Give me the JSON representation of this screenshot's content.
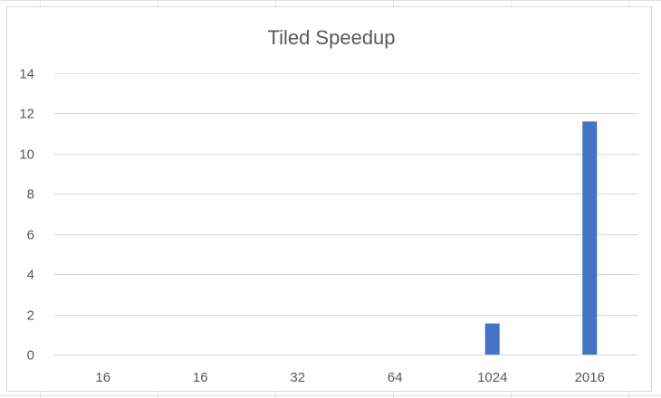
{
  "chart_data": {
    "type": "bar",
    "title": "Tiled Speedup",
    "xlabel": "",
    "ylabel": "",
    "categories": [
      "16",
      "16",
      "32",
      "64",
      "1024",
      "2016"
    ],
    "values": [
      0,
      0,
      0,
      0,
      1.55,
      11.6
    ],
    "ylim": [
      0,
      14
    ],
    "yticks": [
      0,
      2,
      4,
      6,
      8,
      10,
      12,
      14
    ],
    "grid": true,
    "legend": "none",
    "bar_color": "#4472C4",
    "gridline_color": "#d9d9d9",
    "text_color": "#595959"
  }
}
